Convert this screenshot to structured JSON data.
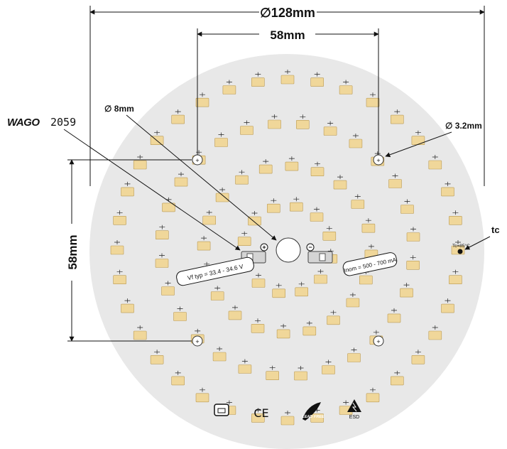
{
  "dimensions": {
    "outer_diameter": "∅128mm",
    "hole_spacing_horizontal": "58mm",
    "hole_spacing_vertical": "58mm",
    "center_hole": "∅ 8mm",
    "mount_hole": "∅ 3.2mm"
  },
  "connector": {
    "brand": "WAGO",
    "model": "2059"
  },
  "board_labels": {
    "voltage": "Vf typ = 33.4 - 34.6 V",
    "current": "Inom = 500 - 700 mA",
    "tc_point": "Tc=85°C",
    "tc_callout": "tc",
    "terminal_plus": "+",
    "terminal_minus": "−"
  },
  "markings": {
    "ce": "CE",
    "lead_free": "LEAD FREE",
    "esd": "ESD"
  },
  "colors": {
    "board": "#e8e8e8",
    "led": "#f0d79a",
    "led_border": "#b99a55",
    "line": "#111111"
  }
}
